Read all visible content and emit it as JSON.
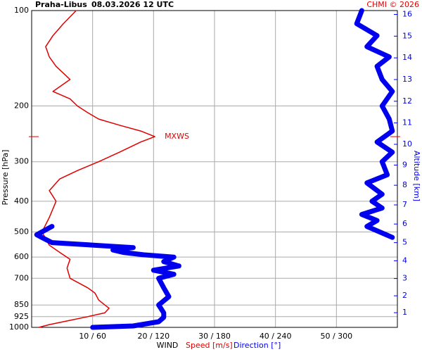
{
  "chart_data": {
    "type": "line",
    "title": "Praha-Libus",
    "subtitle": "08.03.2026 12 UTC",
    "credit": "CHMI © 2026",
    "ylabel": "Pressure [hPa]",
    "y2label": "Altitude [km]",
    "xlabel": "WIND",
    "y_log": true,
    "grid": true,
    "ylim": [
      1000,
      100
    ],
    "yticks": [
      100,
      200,
      300,
      400,
      500,
      600,
      700,
      850,
      925,
      1000
    ],
    "xlim": [
      0,
      60
    ],
    "xticks": [
      {
        "value": 10,
        "label": "10 / 60"
      },
      {
        "value": 20,
        "label": "20 / 120"
      },
      {
        "value": 30,
        "label": "30 / 180"
      },
      {
        "value": 40,
        "label": "40 / 240"
      },
      {
        "value": 50,
        "label": "50 / 300"
      }
    ],
    "y2ticks": [
      1,
      2,
      3,
      4,
      5,
      6,
      7,
      8,
      9,
      10,
      11,
      12,
      13,
      14,
      15,
      16
    ],
    "annotation": {
      "text": "MXWS",
      "pressure": 250
    },
    "series": [
      {
        "name": "Speed [m/s]",
        "color": "#e00000",
        "xlim": [
          0,
          60
        ],
        "pressure": [
          1000,
          980,
          950,
          925,
          900,
          870,
          850,
          820,
          780,
          750,
          700,
          650,
          610,
          580,
          550,
          500,
          450,
          400,
          370,
          340,
          320,
          300,
          280,
          260,
          250,
          240,
          230,
          220,
          210,
          200,
          190,
          180,
          165,
          150,
          140,
          130,
          120,
          110,
          100
        ],
        "values": [
          1.2,
          2.9,
          6.3,
          9.2,
          12,
          12.7,
          12,
          11,
          10.4,
          9.2,
          6.3,
          5.8,
          6.3,
          4.6,
          2.9,
          1.7,
          2.9,
          4,
          2.9,
          4.6,
          7.5,
          11,
          14.4,
          17.9,
          20.2,
          17.9,
          14.4,
          11,
          9.2,
          7.5,
          6.3,
          3.5,
          6.3,
          4,
          2.9,
          2.3,
          3.5,
          5.2,
          7.3
        ]
      },
      {
        "name": "Direction [°]",
        "color": "#0000ee",
        "xlim": [
          0,
          360
        ],
        "pressure": [
          1000,
          990,
          960,
          930,
          900,
          850,
          800,
          750,
          700,
          680,
          660,
          640,
          620,
          600,
          590,
          580,
          570,
          560,
          540,
          520,
          510,
          480,
          470,
          520,
          480,
          460,
          440,
          420,
          400,
          380,
          350,
          330,
          300,
          280,
          260,
          240,
          220,
          200,
          180,
          165,
          150,
          140,
          130,
          120,
          110,
          100
        ],
        "values": [
          60,
          100,
          125,
          130,
          130,
          125,
          135,
          130,
          125,
          140,
          120,
          145,
          130,
          140,
          110,
          90,
          80,
          100,
          20,
          10,
          5,
          20,
          null,
          355,
          330,
          340,
          325,
          345,
          335,
          345,
          330,
          350,
          345,
          355,
          340,
          355,
          352,
          345,
          355,
          345,
          340,
          352,
          330,
          340,
          320,
          325
        ]
      }
    ]
  }
}
